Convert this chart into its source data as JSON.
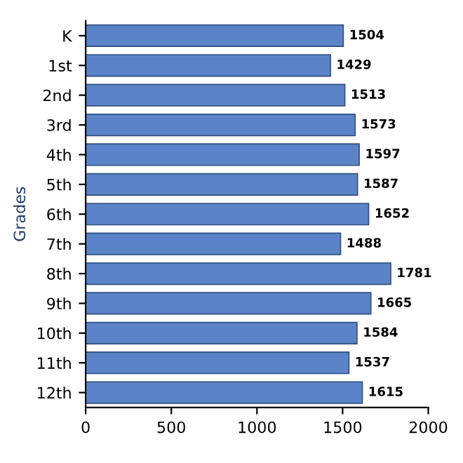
{
  "chart_data": {
    "type": "bar",
    "orientation": "horizontal",
    "ylabel": "Grades",
    "categories": [
      "K",
      "1st",
      "2nd",
      "3rd",
      "4th",
      "5th",
      "6th",
      "7th",
      "8th",
      "9th",
      "10th",
      "11th",
      "12th"
    ],
    "values": [
      1504,
      1429,
      1513,
      1573,
      1597,
      1587,
      1652,
      1488,
      1781,
      1665,
      1584,
      1537,
      1615
    ],
    "color": "#5b84c8",
    "xlim": [
      0,
      2000
    ],
    "xticks": [
      0,
      500,
      1000,
      1500,
      2000
    ],
    "data_labels": true,
    "grid": false
  }
}
